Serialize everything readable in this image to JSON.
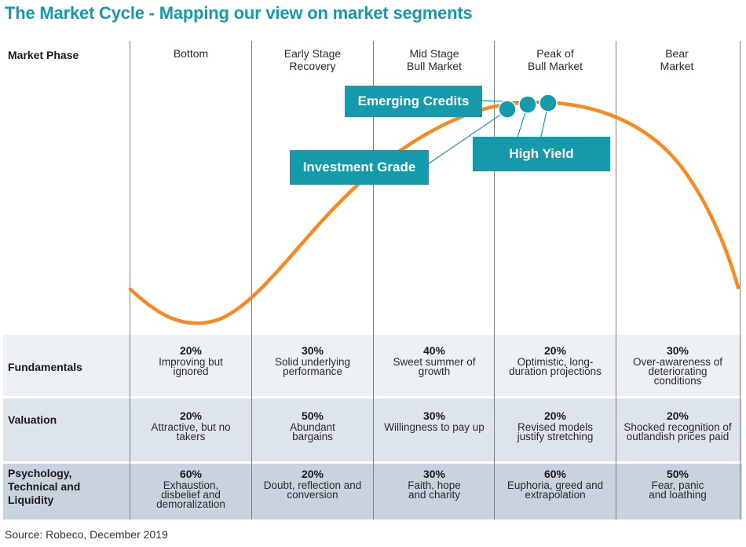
{
  "title": "The Market Cycle - Mapping our view on market segments",
  "header_label": "Market Phase",
  "phases": [
    {
      "line1": "Bottom",
      "line2": ""
    },
    {
      "line1": "Early Stage",
      "line2": "Recovery"
    },
    {
      "line1": "Mid Stage",
      "line2": "Bull Market"
    },
    {
      "line1": "Peak of",
      "line2": "Bull Market"
    },
    {
      "line1": "Bear",
      "line2": "Market"
    }
  ],
  "segments": {
    "emerging_credits": "Emerging Credits",
    "investment_grade": "Investment Grade",
    "high_yield": "High Yield"
  },
  "rows": {
    "fundamentals": {
      "label": "Fundamentals",
      "cells": [
        {
          "pct": "20%",
          "text": "Improving but ignored"
        },
        {
          "pct": "30%",
          "text": "Solid underlying performance"
        },
        {
          "pct": "40%",
          "text": "Sweet summer of growth"
        },
        {
          "pct": "20%",
          "text": "Optimistic, long-duration projections"
        },
        {
          "pct": "30%",
          "text": "Over-awareness of deteriorating conditions"
        }
      ]
    },
    "valuation": {
      "label": "Valuation",
      "cells": [
        {
          "pct": "20%",
          "text": "Attractive, but no takers"
        },
        {
          "pct": "50%",
          "text": "Abundant bargains"
        },
        {
          "pct": "30%",
          "text": "Willingness to pay up"
        },
        {
          "pct": "20%",
          "text": "Revised models justify stretching"
        },
        {
          "pct": "20%",
          "text": "Shocked recognition of outlandish prices paid"
        }
      ]
    },
    "psychology": {
      "label_line1": "Psychology,",
      "label_line2": "Technical and",
      "label_line3": "Liquidity",
      "cells": [
        {
          "pct": "60%",
          "text": "Exhaustion, disbelief and demoralization"
        },
        {
          "pct": "20%",
          "text": "Doubt, reflection and conversion"
        },
        {
          "pct": "30%",
          "text": "Faith, hope and charity"
        },
        {
          "pct": "60%",
          "text": "Euphoria, greed and extrapolation"
        },
        {
          "pct": "50%",
          "text": "Fear, panic and loathing"
        }
      ]
    }
  },
  "source": "Source: Robeco, December 2019",
  "colors": {
    "curve": "#f7891f",
    "accent": "#159aab"
  }
}
